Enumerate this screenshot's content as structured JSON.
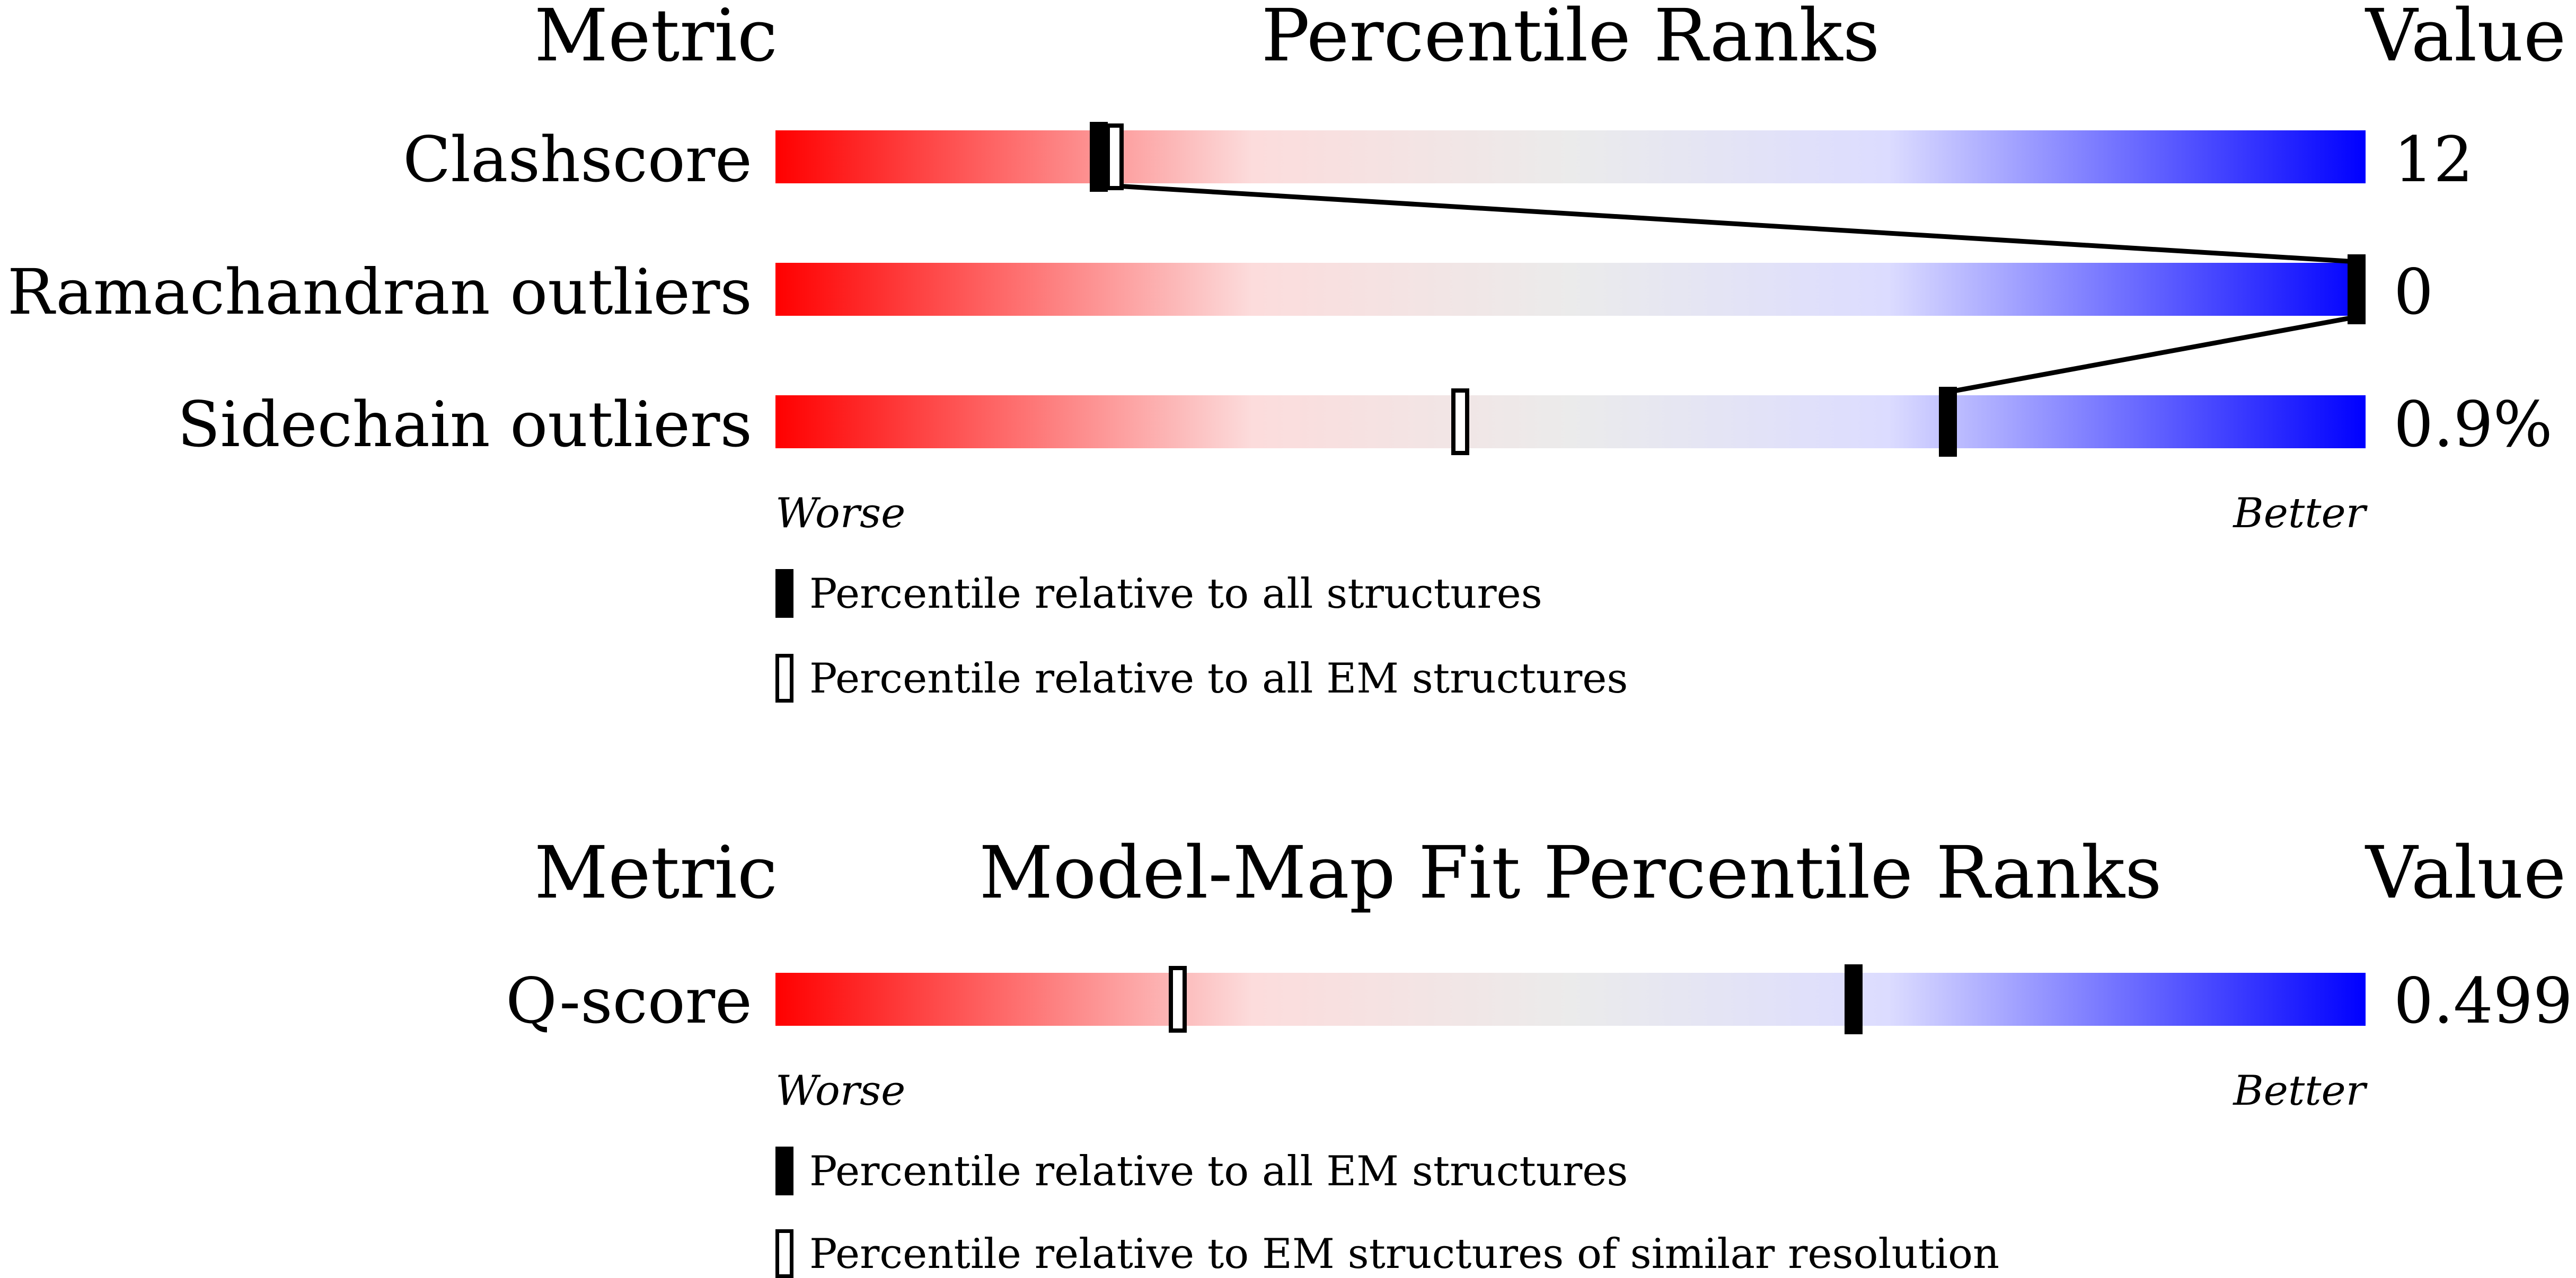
{
  "chart_data": [
    {
      "type": "bar",
      "headers": {
        "metric": "Metric",
        "title": "Percentile Ranks",
        "value": "Value"
      },
      "x_range": [
        0,
        100
      ],
      "axis_labels": {
        "left": "Worse",
        "right": "Better"
      },
      "gradient_colors": [
        "#ff0000",
        "#fcdcdc",
        "#ebebeb",
        "#dcdcff",
        "#0000ff"
      ],
      "rows": [
        {
          "label": "Clashscore",
          "value": "12",
          "percentile_all": 20,
          "percentile_subset": 21
        },
        {
          "label": "Ramachandran outliers",
          "value": "0",
          "percentile_all": 100
        },
        {
          "label": "Sidechain outliers",
          "value": "0.9%",
          "percentile_all": 74,
          "percentile_subset": 43
        }
      ],
      "legend": [
        {
          "style": "solid",
          "label": "Percentile relative to all structures"
        },
        {
          "style": "hollow",
          "label": "Percentile relative to all EM structures"
        }
      ]
    },
    {
      "type": "bar",
      "headers": {
        "metric": "Metric",
        "title": "Model-Map Fit Percentile Ranks",
        "value": "Value"
      },
      "x_range": [
        0,
        100
      ],
      "axis_labels": {
        "left": "Worse",
        "right": "Better"
      },
      "gradient_colors": [
        "#ff0000",
        "#fcdcdc",
        "#ebebeb",
        "#dcdcff",
        "#0000ff"
      ],
      "rows": [
        {
          "label": "Q-score",
          "value": "0.499",
          "percentile_all": 68,
          "percentile_subset": 25
        }
      ],
      "legend": [
        {
          "style": "solid",
          "label": "Percentile relative to all EM structures"
        },
        {
          "style": "hollow",
          "label": "Percentile relative to EM structures of similar resolution"
        }
      ]
    }
  ]
}
